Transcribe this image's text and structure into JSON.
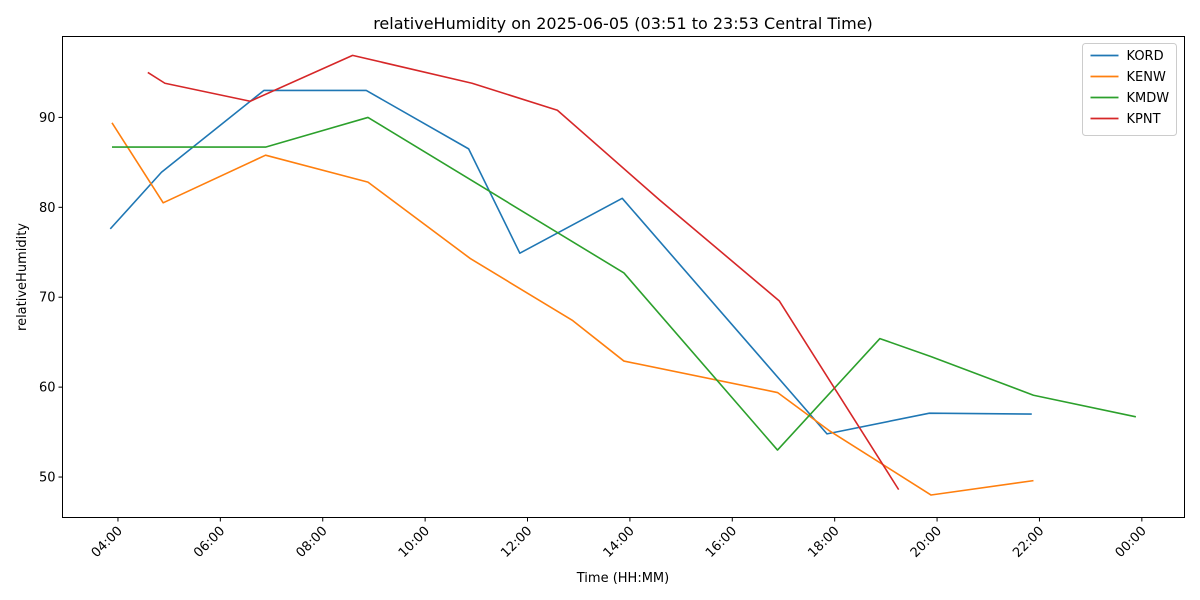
{
  "chart_data": {
    "type": "line",
    "title": "relativeHumidity on 2025-06-05 (03:51 to 23:53 Central Time)",
    "xlabel": "Time (HH:MM)",
    "ylabel": "relativeHumidity",
    "x_unit": "time of day (HH:MM)",
    "xlim": [
      "02:55",
      "00:50"
    ],
    "ylim": [
      45.5,
      99
    ],
    "xticks": [
      "04:00",
      "06:00",
      "08:00",
      "10:00",
      "12:00",
      "14:00",
      "16:00",
      "18:00",
      "20:00",
      "22:00",
      "00:00"
    ],
    "yticks": [
      50,
      60,
      70,
      80,
      90
    ],
    "grid": false,
    "legend_position": "top-right",
    "series": [
      {
        "name": "KORD",
        "color": "#1f77b4",
        "points": [
          {
            "x": "03:51",
            "y": 77.6
          },
          {
            "x": "04:51",
            "y": 83.9
          },
          {
            "x": "06:51",
            "y": 93.0
          },
          {
            "x": "08:51",
            "y": 93.0
          },
          {
            "x": "10:51",
            "y": 86.5
          },
          {
            "x": "11:51",
            "y": 74.9
          },
          {
            "x": "13:51",
            "y": 81.0
          },
          {
            "x": "17:51",
            "y": 54.8
          },
          {
            "x": "19:51",
            "y": 57.1
          },
          {
            "x": "21:51",
            "y": 57.0
          }
        ]
      },
      {
        "name": "KENW",
        "color": "#ff7f0e",
        "points": [
          {
            "x": "03:53",
            "y": 89.4
          },
          {
            "x": "04:53",
            "y": 80.5
          },
          {
            "x": "06:53",
            "y": 85.8
          },
          {
            "x": "08:53",
            "y": 82.8
          },
          {
            "x": "10:53",
            "y": 74.3
          },
          {
            "x": "12:53",
            "y": 67.4
          },
          {
            "x": "13:53",
            "y": 62.9
          },
          {
            "x": "16:53",
            "y": 59.4
          },
          {
            "x": "17:53",
            "y": 55.2
          },
          {
            "x": "19:53",
            "y": 48.0
          },
          {
            "x": "21:53",
            "y": 49.6
          }
        ]
      },
      {
        "name": "KMDW",
        "color": "#2ca02c",
        "points": [
          {
            "x": "03:53",
            "y": 86.7
          },
          {
            "x": "06:53",
            "y": 86.7
          },
          {
            "x": "08:53",
            "y": 90.0
          },
          {
            "x": "13:53",
            "y": 72.7
          },
          {
            "x": "16:53",
            "y": 53.0
          },
          {
            "x": "18:53",
            "y": 65.4
          },
          {
            "x": "19:53",
            "y": 63.4
          },
          {
            "x": "21:53",
            "y": 59.1
          },
          {
            "x": "23:53",
            "y": 56.7
          }
        ]
      },
      {
        "name": "KPNT",
        "color": "#d62728",
        "points": [
          {
            "x": "04:35",
            "y": 95.0
          },
          {
            "x": "04:55",
            "y": 93.8
          },
          {
            "x": "06:35",
            "y": 91.8
          },
          {
            "x": "08:35",
            "y": 96.9
          },
          {
            "x": "10:55",
            "y": 93.8
          },
          {
            "x": "12:35",
            "y": 90.8
          },
          {
            "x": "14:35",
            "y": 80.8
          },
          {
            "x": "16:55",
            "y": 69.6
          },
          {
            "x": "19:15",
            "y": 48.6
          }
        ]
      }
    ]
  }
}
